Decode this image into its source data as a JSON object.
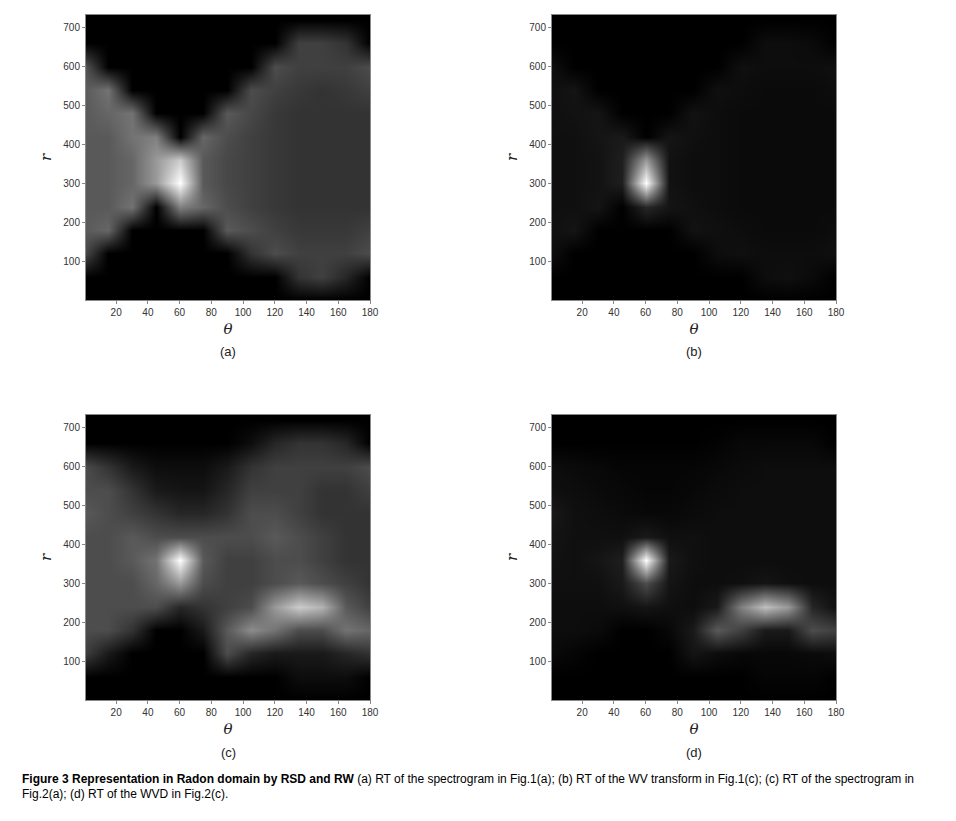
{
  "chart_data": [
    {
      "type": "heatmap",
      "title": "(a)",
      "x_label": "θ",
      "y_label": "r",
      "xlim": [
        1,
        180
      ],
      "ylim": [
        0,
        733
      ],
      "xticks": [
        20,
        40,
        60,
        80,
        100,
        120,
        140,
        160,
        180
      ],
      "yticks": [
        100,
        200,
        300,
        400,
        500,
        600,
        700
      ],
      "x": [
        0,
        15,
        30,
        45,
        60,
        75,
        90,
        105,
        120,
        135,
        150,
        165,
        180
      ],
      "y": [
        0,
        60,
        120,
        180,
        240,
        300,
        360,
        420,
        480,
        540,
        600,
        660,
        720
      ],
      "z": [
        [
          0,
          0,
          0,
          0,
          0,
          0,
          0,
          0,
          0,
          0,
          0,
          0,
          0
        ],
        [
          0,
          0,
          0,
          0,
          0,
          0,
          0,
          0,
          0,
          0.2,
          0.25,
          0.15,
          0
        ],
        [
          0.3,
          0,
          0,
          0,
          0,
          0,
          0,
          0.2,
          0.3,
          0.25,
          0.25,
          0.25,
          0.3
        ],
        [
          0.35,
          0.4,
          0,
          0,
          0,
          0,
          0.35,
          0.3,
          0.25,
          0.22,
          0.22,
          0.22,
          0.25
        ],
        [
          0.35,
          0.35,
          0.45,
          0,
          0.5,
          0.4,
          0.3,
          0.25,
          0.22,
          0.2,
          0.2,
          0.2,
          0.2
        ],
        [
          0.35,
          0.35,
          0.4,
          0.6,
          1.0,
          0.35,
          0.28,
          0.25,
          0.22,
          0.2,
          0.2,
          0.2,
          0.2
        ],
        [
          0.35,
          0.35,
          0.4,
          0.6,
          0.8,
          0.35,
          0.28,
          0.25,
          0.22,
          0.2,
          0.2,
          0.2,
          0.2
        ],
        [
          0.35,
          0.35,
          0.45,
          0.5,
          0,
          0.4,
          0.3,
          0.25,
          0.22,
          0.2,
          0.2,
          0.2,
          0.2
        ],
        [
          0.35,
          0.4,
          0.45,
          0,
          0,
          0,
          0.35,
          0.28,
          0.22,
          0.2,
          0.2,
          0.2,
          0.2
        ],
        [
          0.35,
          0.45,
          0,
          0,
          0,
          0,
          0,
          0.3,
          0.25,
          0.22,
          0.2,
          0.22,
          0.25
        ],
        [
          0.35,
          0,
          0,
          0,
          0,
          0,
          0,
          0,
          0.3,
          0.25,
          0.25,
          0.25,
          0.3
        ],
        [
          0,
          0,
          0,
          0,
          0,
          0,
          0,
          0,
          0,
          0.25,
          0.25,
          0.2,
          0
        ],
        [
          0,
          0,
          0,
          0,
          0,
          0,
          0,
          0,
          0,
          0,
          0,
          0,
          0
        ]
      ]
    },
    {
      "type": "heatmap",
      "title": "(b)",
      "x_label": "θ",
      "y_label": "r",
      "xlim": [
        1,
        180
      ],
      "ylim": [
        0,
        733
      ],
      "xticks": [
        20,
        40,
        60,
        80,
        100,
        120,
        140,
        160,
        180
      ],
      "yticks": [
        100,
        200,
        300,
        400,
        500,
        600,
        700
      ],
      "x": [
        0,
        15,
        30,
        45,
        60,
        75,
        90,
        105,
        120,
        135,
        150,
        165,
        180
      ],
      "y": [
        0,
        60,
        120,
        180,
        240,
        300,
        360,
        420,
        480,
        540,
        600,
        660,
        720
      ],
      "z": [
        [
          0,
          0,
          0,
          0,
          0,
          0,
          0,
          0,
          0,
          0,
          0,
          0,
          0
        ],
        [
          0,
          0,
          0,
          0,
          0,
          0,
          0,
          0,
          0,
          0.05,
          0.06,
          0.04,
          0
        ],
        [
          0.06,
          0,
          0,
          0,
          0,
          0,
          0,
          0.05,
          0.06,
          0.05,
          0.05,
          0.05,
          0.06
        ],
        [
          0.06,
          0.08,
          0,
          0,
          0,
          0,
          0.07,
          0.06,
          0.05,
          0.04,
          0.04,
          0.04,
          0.05
        ],
        [
          0.06,
          0.06,
          0.08,
          0,
          0.15,
          0.08,
          0.06,
          0.05,
          0.04,
          0.04,
          0.04,
          0.04,
          0.04
        ],
        [
          0.06,
          0.06,
          0.07,
          0.12,
          1.0,
          0.07,
          0.05,
          0.05,
          0.04,
          0.04,
          0.04,
          0.04,
          0.04
        ],
        [
          0.06,
          0.06,
          0.07,
          0.12,
          0.6,
          0.07,
          0.05,
          0.05,
          0.04,
          0.04,
          0.04,
          0.04,
          0.04
        ],
        [
          0.06,
          0.06,
          0.08,
          0.1,
          0,
          0.08,
          0.06,
          0.05,
          0.04,
          0.04,
          0.04,
          0.04,
          0.04
        ],
        [
          0.06,
          0.07,
          0.08,
          0,
          0,
          0,
          0.07,
          0.05,
          0.04,
          0.04,
          0.04,
          0.04,
          0.04
        ],
        [
          0.06,
          0.08,
          0,
          0,
          0,
          0,
          0,
          0.06,
          0.05,
          0.04,
          0.04,
          0.04,
          0.05
        ],
        [
          0.06,
          0,
          0,
          0,
          0,
          0,
          0,
          0,
          0.06,
          0.05,
          0.05,
          0.05,
          0.06
        ],
        [
          0,
          0,
          0,
          0,
          0,
          0,
          0,
          0,
          0,
          0.05,
          0.05,
          0.04,
          0
        ],
        [
          0,
          0,
          0,
          0,
          0,
          0,
          0,
          0,
          0,
          0,
          0,
          0,
          0
        ]
      ]
    },
    {
      "type": "heatmap",
      "title": "(c)",
      "x_label": "θ",
      "y_label": "r",
      "xlim": [
        1,
        180
      ],
      "ylim": [
        0,
        733
      ],
      "xticks": [
        20,
        40,
        60,
        80,
        100,
        120,
        140,
        160,
        180
      ],
      "yticks": [
        100,
        200,
        300,
        400,
        500,
        600,
        700
      ],
      "x": [
        0,
        15,
        30,
        45,
        60,
        75,
        90,
        105,
        120,
        135,
        150,
        165,
        180
      ],
      "y": [
        0,
        60,
        120,
        180,
        240,
        300,
        360,
        420,
        480,
        540,
        600,
        660,
        720
      ],
      "z": [
        [
          0,
          0,
          0,
          0,
          0,
          0,
          0,
          0,
          0,
          0,
          0,
          0,
          0
        ],
        [
          0,
          0,
          0,
          0,
          0,
          0,
          0,
          0,
          0,
          0.05,
          0.05,
          0.05,
          0
        ],
        [
          0.25,
          0.1,
          0,
          0,
          0,
          0,
          0.3,
          0.15,
          0.1,
          0.1,
          0.1,
          0.15,
          0.2
        ],
        [
          0.3,
          0.3,
          0.2,
          0,
          0,
          0.1,
          0.35,
          0.55,
          0.45,
          0.3,
          0.3,
          0.45,
          0.4
        ],
        [
          0.3,
          0.3,
          0.3,
          0.3,
          0.15,
          0.2,
          0.25,
          0.3,
          0.6,
          0.8,
          0.7,
          0.35,
          0.25
        ],
        [
          0.3,
          0.3,
          0.3,
          0.4,
          0.6,
          0.3,
          0.25,
          0.25,
          0.3,
          0.35,
          0.3,
          0.25,
          0.2
        ],
        [
          0.3,
          0.3,
          0.35,
          0.45,
          1.0,
          0.35,
          0.25,
          0.25,
          0.3,
          0.3,
          0.25,
          0.2,
          0.2
        ],
        [
          0.3,
          0.3,
          0.35,
          0.3,
          0.3,
          0.3,
          0.3,
          0.3,
          0.35,
          0.3,
          0.25,
          0.2,
          0.2
        ],
        [
          0.35,
          0.3,
          0.25,
          0.2,
          0.15,
          0.15,
          0.2,
          0.3,
          0.3,
          0.25,
          0.2,
          0.2,
          0.2
        ],
        [
          0.3,
          0.3,
          0.2,
          0.1,
          0.08,
          0.08,
          0.15,
          0.25,
          0.25,
          0.25,
          0.2,
          0.2,
          0.25
        ],
        [
          0.3,
          0.2,
          0.1,
          0.05,
          0.05,
          0.05,
          0.1,
          0.2,
          0.25,
          0.25,
          0.25,
          0.25,
          0.3
        ],
        [
          0,
          0,
          0,
          0,
          0,
          0,
          0,
          0.05,
          0.15,
          0.2,
          0.2,
          0.15,
          0
        ],
        [
          0,
          0,
          0,
          0,
          0,
          0,
          0,
          0,
          0,
          0,
          0,
          0,
          0
        ]
      ]
    },
    {
      "type": "heatmap",
      "title": "(d)",
      "x_label": "θ",
      "y_label": "r",
      "xlim": [
        1,
        180
      ],
      "ylim": [
        0,
        733
      ],
      "xticks": [
        20,
        40,
        60,
        80,
        100,
        120,
        140,
        160,
        180
      ],
      "yticks": [
        100,
        200,
        300,
        400,
        500,
        600,
        700
      ],
      "x": [
        0,
        15,
        30,
        45,
        60,
        75,
        90,
        105,
        120,
        135,
        150,
        165,
        180
      ],
      "y": [
        0,
        60,
        120,
        180,
        240,
        300,
        360,
        420,
        480,
        540,
        600,
        660,
        720
      ],
      "z": [
        [
          0,
          0,
          0,
          0,
          0,
          0,
          0,
          0,
          0,
          0,
          0,
          0,
          0
        ],
        [
          0,
          0,
          0,
          0,
          0,
          0,
          0,
          0,
          0,
          0.02,
          0.02,
          0.02,
          0
        ],
        [
          0.04,
          0.02,
          0,
          0,
          0,
          0,
          0.08,
          0.05,
          0.03,
          0.03,
          0.03,
          0.04,
          0.05
        ],
        [
          0.05,
          0.05,
          0.04,
          0,
          0,
          0.03,
          0.1,
          0.35,
          0.25,
          0.1,
          0.1,
          0.3,
          0.25
        ],
        [
          0.05,
          0.05,
          0.05,
          0.06,
          0.08,
          0.06,
          0.05,
          0.1,
          0.5,
          0.75,
          0.6,
          0.15,
          0.06
        ],
        [
          0.06,
          0.06,
          0.06,
          0.1,
          0.3,
          0.08,
          0.05,
          0.05,
          0.06,
          0.08,
          0.06,
          0.05,
          0.05
        ],
        [
          0.07,
          0.06,
          0.08,
          0.12,
          1.0,
          0.1,
          0.06,
          0.05,
          0.05,
          0.05,
          0.05,
          0.05,
          0.05
        ],
        [
          0.08,
          0.06,
          0.06,
          0.06,
          0.1,
          0.06,
          0.06,
          0.05,
          0.05,
          0.05,
          0.05,
          0.05,
          0.05
        ],
        [
          0.1,
          0.06,
          0.05,
          0.04,
          0.03,
          0.03,
          0.04,
          0.05,
          0.05,
          0.05,
          0.05,
          0.05,
          0.05
        ],
        [
          0.06,
          0.05,
          0.04,
          0.03,
          0.02,
          0.02,
          0.03,
          0.04,
          0.05,
          0.05,
          0.05,
          0.05,
          0.05
        ],
        [
          0.05,
          0.04,
          0.03,
          0.02,
          0.02,
          0.02,
          0.02,
          0.03,
          0.04,
          0.05,
          0.05,
          0.05,
          0.05
        ],
        [
          0,
          0,
          0,
          0,
          0,
          0,
          0,
          0.01,
          0.03,
          0.03,
          0.03,
          0.03,
          0
        ],
        [
          0,
          0,
          0,
          0,
          0,
          0,
          0,
          0,
          0,
          0,
          0,
          0,
          0
        ]
      ]
    }
  ],
  "caption": {
    "title": "Figure 3 Representation in Radon domain by RSD and RW",
    "text": "(a) RT of the spectrogram in Fig.1(a); (b) RT of the WV transform in Fig.1(c); (c) RT of the spectrogram in Fig.2(a); (d) RT of the WVD in Fig.2(c)."
  }
}
